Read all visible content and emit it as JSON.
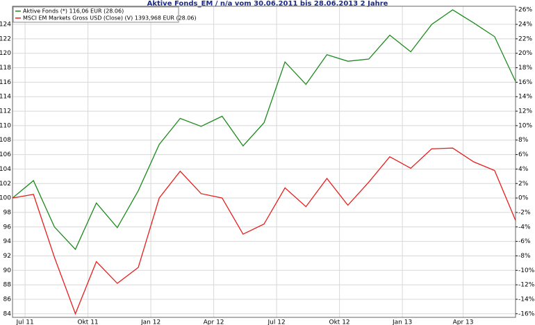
{
  "chart_data": {
    "type": "line",
    "title": "Aktive Fonds_EM / n/a vom 30.06.2011 bis 28.06.2013 2 Jahre",
    "x": [
      0,
      1,
      2,
      3,
      4,
      5,
      6,
      7,
      8,
      9,
      10,
      11,
      12,
      13,
      14,
      15,
      16,
      17,
      18,
      19,
      20,
      21,
      22,
      23,
      24
    ],
    "xlim": [
      0,
      24
    ],
    "xticks": [
      {
        "value": 0.6,
        "label": "Jul 11"
      },
      {
        "value": 3.6,
        "label": "Okt 11"
      },
      {
        "value": 6.6,
        "label": "Jan 12"
      },
      {
        "value": 9.6,
        "label": "Apr 12"
      },
      {
        "value": 12.6,
        "label": "Jul 12"
      },
      {
        "value": 15.6,
        "label": "Okt 12"
      },
      {
        "value": 18.6,
        "label": "Jan 13"
      },
      {
        "value": 21.5,
        "label": "Apr 13"
      }
    ],
    "ylim": [
      83.5,
      126.5
    ],
    "yticks": [
      84,
      86,
      88,
      90,
      92,
      94,
      96,
      98,
      100,
      102,
      104,
      106,
      108,
      110,
      112,
      114,
      116,
      118,
      120,
      122,
      124
    ],
    "y2lim": [
      -16.5,
      26.5
    ],
    "y2ticks": [
      {
        "value": -16,
        "label": "-16%"
      },
      {
        "value": -14,
        "label": "-14%"
      },
      {
        "value": -12,
        "label": "-12%"
      },
      {
        "value": -10,
        "label": "-10%"
      },
      {
        "value": -8,
        "label": "-8%"
      },
      {
        "value": -6,
        "label": "-6%"
      },
      {
        "value": -4,
        "label": "-4%"
      },
      {
        "value": -2,
        "label": "-2%"
      },
      {
        "value": 0,
        "label": "0%"
      },
      {
        "value": 2,
        "label": "2%"
      },
      {
        "value": 4,
        "label": "4%"
      },
      {
        "value": 6,
        "label": "6%"
      },
      {
        "value": 8,
        "label": "8%"
      },
      {
        "value": 10,
        "label": "10%"
      },
      {
        "value": 12,
        "label": "12%"
      },
      {
        "value": 14,
        "label": "14%"
      },
      {
        "value": 16,
        "label": "16%"
      },
      {
        "value": 18,
        "label": "18%"
      },
      {
        "value": 20,
        "label": "20%"
      },
      {
        "value": 22,
        "label": "22%"
      },
      {
        "value": 24,
        "label": "24%"
      },
      {
        "value": 26,
        "label": "26%"
      }
    ],
    "grid": true,
    "legend": "top-left",
    "series": [
      {
        "name": "Aktive Fonds (*) 116,06 EUR (28.06)",
        "color": "#1a8a1a",
        "values": [
          100,
          102.4,
          96,
          92.9,
          99.3,
          95.9,
          101,
          107.4,
          111,
          109.9,
          111.3,
          107.2,
          110.4,
          118.8,
          115.7,
          119.8,
          118.9,
          119.2,
          122.5,
          120.2,
          124,
          126,
          124.2,
          122.3,
          116.1
        ]
      },
      {
        "name": "MSCI EM Markets Gross USD (Close) (V) 1393,968 EUR (28.06)",
        "color": "#e81c1c",
        "axis": "y2",
        "values": [
          0,
          0.5,
          -8.2,
          -16,
          -8.8,
          -11.8,
          -9.6,
          0,
          3.7,
          0.6,
          0,
          -5,
          -3.6,
          1.4,
          -1.2,
          2.7,
          -1,
          2.2,
          5.7,
          4.1,
          6.8,
          6.9,
          5,
          3.8,
          -3.1
        ]
      }
    ]
  }
}
